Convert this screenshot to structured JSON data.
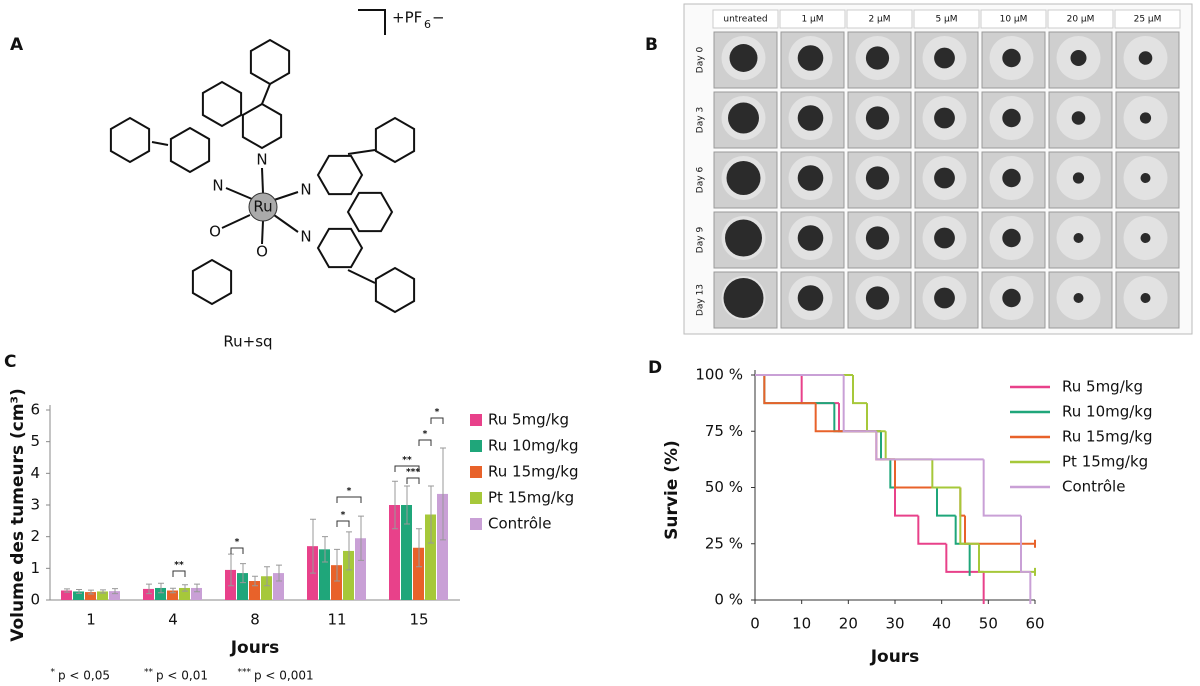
{
  "panel_labels": [
    "A",
    "B",
    "C",
    "D"
  ],
  "structure": {
    "counter_ion": "+PF",
    "counter_ion_sub": "6",
    "counter_ion_charge": "−",
    "metal": "Ru",
    "atoms": [
      "N",
      "N",
      "N",
      "N",
      "O",
      "O"
    ],
    "caption": "Ru+sq"
  },
  "spheroids": {
    "columns": [
      "untreated",
      "1 µM",
      "2 µM",
      "5 µM",
      "10 µM",
      "20 µM",
      "25 µM"
    ],
    "rows": [
      "Day 0",
      "Day 3",
      "Day 6",
      "Day 9",
      "Day 13"
    ]
  },
  "footnotes": [
    {
      "stars": "*",
      "text": "p < 0,05"
    },
    {
      "stars": "**",
      "text": "p < 0,01"
    },
    {
      "stars": "***",
      "text": "p < 0,001"
    }
  ],
  "chart_data": [
    {
      "type": "bar",
      "x_label": "Jours",
      "y_label": "Volume des tumeurs (cm³)",
      "categories": [
        "1",
        "4",
        "8",
        "11",
        "15"
      ],
      "ylim": [
        0,
        6
      ],
      "yticks": [
        0,
        1,
        2,
        3,
        4,
        5,
        6
      ],
      "series": [
        {
          "name": "Ru 5mg/kg",
          "color": "#e8418a",
          "values": [
            0.3,
            0.35,
            0.95,
            1.7,
            3.0
          ],
          "errors": [
            0.05,
            0.15,
            0.5,
            0.85,
            0.75
          ]
        },
        {
          "name": "Ru 10mg/kg",
          "color": "#1fa67a",
          "values": [
            0.27,
            0.38,
            0.85,
            1.6,
            3.0
          ],
          "errors": [
            0.06,
            0.15,
            0.3,
            0.4,
            0.6
          ]
        },
        {
          "name": "Ru 15mg/kg",
          "color": "#e8622a",
          "values": [
            0.25,
            0.3,
            0.6,
            1.1,
            1.65
          ],
          "errors": [
            0.06,
            0.07,
            0.15,
            0.5,
            0.6
          ]
        },
        {
          "name": "Pt 15mg/kg",
          "color": "#a6c83a",
          "values": [
            0.27,
            0.38,
            0.75,
            1.55,
            2.7
          ],
          "errors": [
            0.05,
            0.1,
            0.3,
            0.6,
            0.9
          ]
        },
        {
          "name": "Contrôle",
          "color": "#c9a0d6",
          "values": [
            0.28,
            0.38,
            0.85,
            1.95,
            3.35
          ],
          "errors": [
            0.08,
            0.12,
            0.25,
            0.7,
            1.45
          ]
        }
      ],
      "significance": [
        {
          "label": "**"
        },
        {
          "label": "*"
        },
        {
          "label": "*"
        },
        {
          "label": "*"
        },
        {
          "label": "**"
        },
        {
          "label": "***"
        },
        {
          "label": "*"
        },
        {
          "label": "*"
        }
      ]
    },
    {
      "type": "step",
      "x_label": "Jours",
      "y_label": "Survie (%)",
      "xlim": [
        0,
        60
      ],
      "xticks": [
        0,
        10,
        20,
        30,
        40,
        50,
        60
      ],
      "ylim": [
        0,
        100
      ],
      "yticks": [
        {
          "value": 0,
          "label": "0 %"
        },
        {
          "value": 25,
          "label": "25 %"
        },
        {
          "value": 50,
          "label": "50 %"
        },
        {
          "value": 75,
          "label": "75 %"
        },
        {
          "value": 100,
          "label": "100 %"
        }
      ],
      "series": [
        {
          "name": "Ru 5mg/kg",
          "color": "#e8418a",
          "x": [
            0,
            10,
            18,
            27,
            30,
            35,
            41,
            49
          ],
          "values": [
            100,
            87.5,
            75,
            62.5,
            37.5,
            25,
            12.5,
            0
          ]
        },
        {
          "name": "Ru 10mg/kg",
          "color": "#1fa67a",
          "x": [
            0,
            2,
            17,
            27,
            29,
            39,
            43,
            46
          ],
          "values": [
            100,
            87.5,
            75,
            62.5,
            50,
            37.5,
            25,
            12.5
          ]
        },
        {
          "name": "Ru 15mg/kg",
          "color": "#e8622a",
          "x": [
            0,
            2,
            13,
            26,
            30,
            44,
            45,
            60
          ],
          "values": [
            100,
            87.5,
            75,
            62.5,
            50,
            37.5,
            25,
            25
          ]
        },
        {
          "name": "Pt 15mg/kg",
          "color": "#a6c83a",
          "x": [
            0,
            21,
            24,
            28,
            38,
            44,
            48,
            60
          ],
          "values": [
            100,
            87.5,
            75,
            62.5,
            50,
            25,
            12.5,
            12.5
          ]
        },
        {
          "name": "Contrôle",
          "color": "#c9a0d6",
          "x": [
            0,
            19,
            26,
            49,
            57,
            59
          ],
          "values": [
            100,
            75,
            62.5,
            37.5,
            12.5,
            0
          ]
        }
      ]
    }
  ]
}
